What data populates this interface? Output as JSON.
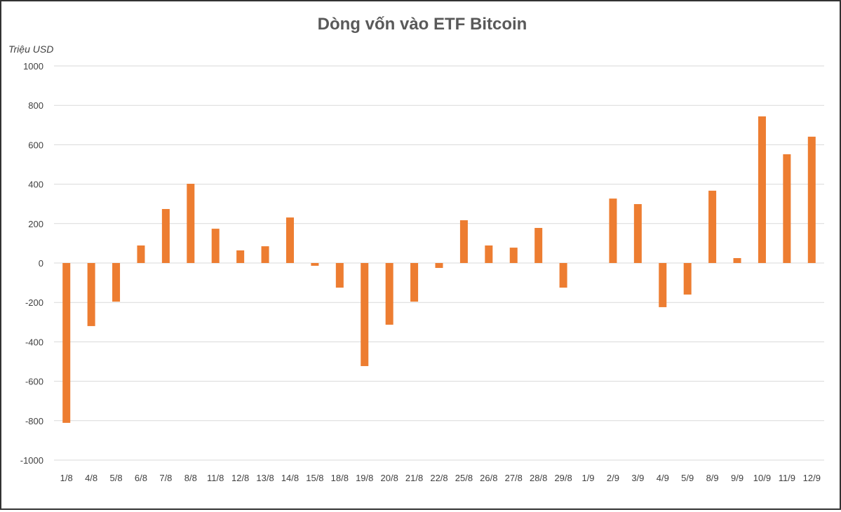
{
  "chart_data": {
    "type": "bar",
    "title": "Dòng vốn vào ETF Bitcoin",
    "ylabel": "Triệu USD",
    "xlabel": "",
    "ylim": [
      -1000,
      1000
    ],
    "yticks": [
      1000,
      800,
      600,
      400,
      200,
      0,
      -200,
      -400,
      -600,
      -800,
      -1000
    ],
    "grid": true,
    "bar_color": "#ED7D31",
    "categories": [
      "1/8",
      "4/8",
      "5/8",
      "6/8",
      "7/8",
      "8/8",
      "11/8",
      "12/8",
      "13/8",
      "14/8",
      "15/8",
      "18/8",
      "19/8",
      "20/8",
      "21/8",
      "22/8",
      "25/8",
      "26/8",
      "27/8",
      "28/8",
      "29/8",
      "1/9",
      "2/9",
      "3/9",
      "4/9",
      "5/9",
      "8/9",
      "9/9",
      "10/9",
      "11/9",
      "12/9"
    ],
    "values": [
      -811,
      -320,
      -196,
      89,
      274,
      402,
      174,
      64,
      85,
      231,
      -14,
      -125,
      -523,
      -313,
      -196,
      -25,
      217,
      89,
      78,
      178,
      -125,
      0,
      327,
      299,
      -224,
      -160,
      367,
      25,
      744,
      552,
      641
    ]
  }
}
